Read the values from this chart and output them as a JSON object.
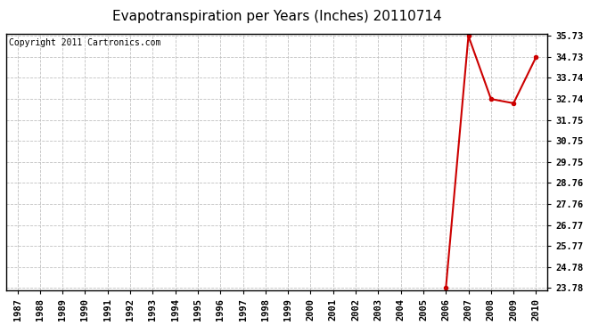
{
  "title": "Evapotranspiration per Years (Inches) 20110714",
  "copyright_text": "Copyright 2011 Cartronics.com",
  "x_years": [
    1987,
    1988,
    1989,
    1990,
    1991,
    1992,
    1993,
    1994,
    1995,
    1996,
    1997,
    1998,
    1999,
    2000,
    2001,
    2002,
    2003,
    2004,
    2005,
    2006,
    2007,
    2008,
    2009,
    2010
  ],
  "y_values": [
    null,
    null,
    null,
    null,
    null,
    null,
    null,
    null,
    null,
    null,
    null,
    null,
    null,
    null,
    null,
    null,
    null,
    null,
    null,
    23.78,
    35.73,
    32.74,
    32.54,
    34.73
  ],
  "line_color": "#cc0000",
  "marker": "o",
  "marker_size": 3,
  "ytick_values": [
    23.78,
    24.78,
    25.77,
    26.77,
    27.76,
    28.76,
    29.75,
    30.75,
    31.75,
    32.74,
    33.74,
    34.73,
    35.73
  ],
  "background_color": "#ffffff",
  "grid_color": "#c0c0c0",
  "title_fontsize": 11,
  "tick_fontsize": 7.5,
  "copyright_fontsize": 7
}
